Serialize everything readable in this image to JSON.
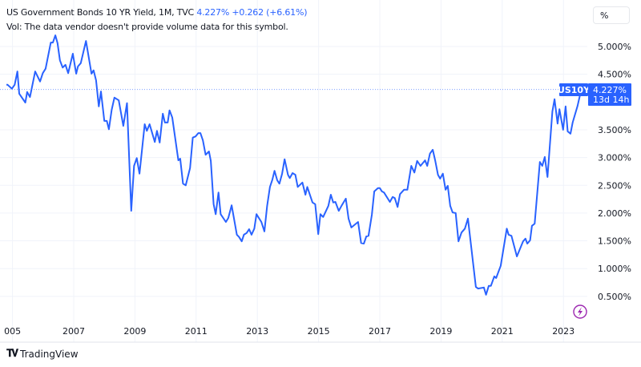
{
  "header": {
    "title": "US Government Bonds 10 YR Yield, 1M, TVC",
    "last": "4.227%",
    "change": "+0.262 (+6.61%)",
    "vol_note": "Vol: The data vendor doesn't provide volume data for this symbol."
  },
  "scale_button": "%",
  "price_label": {
    "symbol": "US10Y",
    "value": "4.227%",
    "countdown": "13d 14h"
  },
  "branding": "TradingView",
  "icons": {
    "alert": "lightning-icon",
    "logo": "tradingview-logo-icon"
  },
  "colors": {
    "line": "#2962ff",
    "label_bg": "#2962ff",
    "alert": "#9c27b0"
  },
  "chart_data": {
    "type": "line",
    "title": "US Government Bonds 10 YR Yield, 1M, TVC",
    "xlabel": "",
    "ylabel": "",
    "xlim": [
      2004.8,
      2023.85
    ],
    "ylim": [
      -0.05,
      5.85
    ],
    "grid": true,
    "x_ticks": [
      "005",
      "2007",
      "2009",
      "2011",
      "2013",
      "2015",
      "2017",
      "2019",
      "2021",
      "2023"
    ],
    "x_tick_values": [
      2005,
      2007,
      2009,
      2011,
      2013,
      2015,
      2017,
      2019,
      2021,
      2023
    ],
    "y_ticks": [
      "5.000%",
      "4.500%",
      "3.500%",
      "3.000%",
      "2.500%",
      "2.000%",
      "1.500%",
      "1.000%",
      "0.500%"
    ],
    "y_tick_values": [
      5.0,
      4.5,
      3.5,
      3.0,
      2.5,
      2.0,
      1.5,
      1.0,
      0.5
    ],
    "last_value": 4.227,
    "series": [
      {
        "points": [
          [
            2004.8,
            4.31
          ],
          [
            2004.84,
            4.31
          ],
          [
            2004.98,
            4.24
          ],
          [
            2005.07,
            4.31
          ],
          [
            2005.16,
            4.55
          ],
          [
            2005.22,
            4.15
          ],
          [
            2005.42,
            3.99
          ],
          [
            2005.48,
            4.18
          ],
          [
            2005.57,
            4.09
          ],
          [
            2005.74,
            4.55
          ],
          [
            2005.9,
            4.37
          ],
          [
            2005.99,
            4.52
          ],
          [
            2006.08,
            4.6
          ],
          [
            2006.25,
            5.07
          ],
          [
            2006.32,
            5.07
          ],
          [
            2006.4,
            5.2
          ],
          [
            2006.47,
            5.06
          ],
          [
            2006.55,
            4.75
          ],
          [
            2006.64,
            4.62
          ],
          [
            2006.73,
            4.67
          ],
          [
            2006.82,
            4.52
          ],
          [
            2006.97,
            4.87
          ],
          [
            2007.08,
            4.51
          ],
          [
            2007.14,
            4.64
          ],
          [
            2007.23,
            4.7
          ],
          [
            2007.4,
            5.1
          ],
          [
            2007.58,
            4.51
          ],
          [
            2007.65,
            4.57
          ],
          [
            2007.73,
            4.39
          ],
          [
            2007.82,
            3.92
          ],
          [
            2007.89,
            4.19
          ],
          [
            2008.0,
            3.66
          ],
          [
            2008.08,
            3.66
          ],
          [
            2008.15,
            3.51
          ],
          [
            2008.24,
            3.86
          ],
          [
            2008.33,
            4.08
          ],
          [
            2008.47,
            4.03
          ],
          [
            2008.62,
            3.57
          ],
          [
            2008.74,
            3.98
          ],
          [
            2008.88,
            2.04
          ],
          [
            2008.97,
            2.85
          ],
          [
            2009.06,
            2.99
          ],
          [
            2009.15,
            2.71
          ],
          [
            2009.32,
            3.6
          ],
          [
            2009.39,
            3.48
          ],
          [
            2009.48,
            3.6
          ],
          [
            2009.65,
            3.28
          ],
          [
            2009.72,
            3.48
          ],
          [
            2009.81,
            3.27
          ],
          [
            2009.91,
            3.79
          ],
          [
            2009.98,
            3.63
          ],
          [
            2010.07,
            3.63
          ],
          [
            2010.13,
            3.85
          ],
          [
            2010.22,
            3.72
          ],
          [
            2010.42,
            2.95
          ],
          [
            2010.48,
            2.98
          ],
          [
            2010.57,
            2.53
          ],
          [
            2010.66,
            2.5
          ],
          [
            2010.8,
            2.81
          ],
          [
            2010.89,
            3.36
          ],
          [
            2010.98,
            3.38
          ],
          [
            2011.07,
            3.44
          ],
          [
            2011.14,
            3.44
          ],
          [
            2011.22,
            3.31
          ],
          [
            2011.31,
            3.05
          ],
          [
            2011.42,
            3.11
          ],
          [
            2011.48,
            2.94
          ],
          [
            2011.57,
            2.16
          ],
          [
            2011.64,
            1.98
          ],
          [
            2011.73,
            2.37
          ],
          [
            2011.8,
            1.98
          ],
          [
            2011.97,
            1.84
          ],
          [
            2012.05,
            1.91
          ],
          [
            2012.16,
            2.14
          ],
          [
            2012.33,
            1.61
          ],
          [
            2012.4,
            1.57
          ],
          [
            2012.49,
            1.49
          ],
          [
            2012.56,
            1.61
          ],
          [
            2012.65,
            1.64
          ],
          [
            2012.73,
            1.71
          ],
          [
            2012.81,
            1.61
          ],
          [
            2012.9,
            1.72
          ],
          [
            2012.97,
            1.98
          ],
          [
            2013.13,
            1.84
          ],
          [
            2013.23,
            1.67
          ],
          [
            2013.32,
            2.13
          ],
          [
            2013.41,
            2.47
          ],
          [
            2013.49,
            2.6
          ],
          [
            2013.56,
            2.76
          ],
          [
            2013.65,
            2.59
          ],
          [
            2013.72,
            2.53
          ],
          [
            2013.81,
            2.71
          ],
          [
            2013.89,
            2.97
          ],
          [
            2014.0,
            2.69
          ],
          [
            2014.06,
            2.63
          ],
          [
            2014.15,
            2.72
          ],
          [
            2014.24,
            2.69
          ],
          [
            2014.32,
            2.47
          ],
          [
            2014.47,
            2.55
          ],
          [
            2014.57,
            2.33
          ],
          [
            2014.63,
            2.47
          ],
          [
            2014.8,
            2.19
          ],
          [
            2014.89,
            2.16
          ],
          [
            2014.99,
            1.62
          ],
          [
            2015.06,
            1.98
          ],
          [
            2015.15,
            1.93
          ],
          [
            2015.32,
            2.13
          ],
          [
            2015.4,
            2.33
          ],
          [
            2015.48,
            2.19
          ],
          [
            2015.55,
            2.2
          ],
          [
            2015.66,
            2.04
          ],
          [
            2015.76,
            2.14
          ],
          [
            2015.89,
            2.26
          ],
          [
            2015.98,
            1.9
          ],
          [
            2016.07,
            1.74
          ],
          [
            2016.29,
            1.84
          ],
          [
            2016.39,
            1.46
          ],
          [
            2016.48,
            1.45
          ],
          [
            2016.56,
            1.58
          ],
          [
            2016.63,
            1.59
          ],
          [
            2016.74,
            1.97
          ],
          [
            2016.82,
            2.39
          ],
          [
            2016.94,
            2.45
          ],
          [
            2017.0,
            2.45
          ],
          [
            2017.07,
            2.39
          ],
          [
            2017.14,
            2.37
          ],
          [
            2017.33,
            2.2
          ],
          [
            2017.42,
            2.29
          ],
          [
            2017.49,
            2.27
          ],
          [
            2017.58,
            2.11
          ],
          [
            2017.66,
            2.34
          ],
          [
            2017.79,
            2.42
          ],
          [
            2017.9,
            2.42
          ],
          [
            2018.03,
            2.85
          ],
          [
            2018.13,
            2.73
          ],
          [
            2018.22,
            2.94
          ],
          [
            2018.33,
            2.85
          ],
          [
            2018.48,
            2.95
          ],
          [
            2018.55,
            2.85
          ],
          [
            2018.64,
            3.07
          ],
          [
            2018.73,
            3.14
          ],
          [
            2018.81,
            2.95
          ],
          [
            2018.9,
            2.69
          ],
          [
            2018.97,
            2.62
          ],
          [
            2019.06,
            2.71
          ],
          [
            2019.15,
            2.42
          ],
          [
            2019.22,
            2.49
          ],
          [
            2019.3,
            2.13
          ],
          [
            2019.38,
            2.01
          ],
          [
            2019.48,
            2.0
          ],
          [
            2019.57,
            1.49
          ],
          [
            2019.67,
            1.65
          ],
          [
            2019.78,
            1.72
          ],
          [
            2019.88,
            1.9
          ],
          [
            2020.14,
            0.67
          ],
          [
            2020.21,
            0.64
          ],
          [
            2020.4,
            0.66
          ],
          [
            2020.47,
            0.53
          ],
          [
            2020.56,
            0.69
          ],
          [
            2020.63,
            0.69
          ],
          [
            2020.74,
            0.86
          ],
          [
            2020.8,
            0.83
          ],
          [
            2020.95,
            1.05
          ],
          [
            2021.15,
            1.72
          ],
          [
            2021.21,
            1.61
          ],
          [
            2021.3,
            1.59
          ],
          [
            2021.48,
            1.22
          ],
          [
            2021.68,
            1.49
          ],
          [
            2021.76,
            1.54
          ],
          [
            2021.82,
            1.45
          ],
          [
            2021.91,
            1.51
          ],
          [
            2021.97,
            1.77
          ],
          [
            2022.06,
            1.81
          ],
          [
            2022.23,
            2.92
          ],
          [
            2022.31,
            2.85
          ],
          [
            2022.39,
            3.01
          ],
          [
            2022.48,
            2.65
          ],
          [
            2022.64,
            3.83
          ],
          [
            2022.71,
            4.05
          ],
          [
            2022.81,
            3.61
          ],
          [
            2022.87,
            3.87
          ],
          [
            2022.99,
            3.5
          ],
          [
            2023.07,
            3.92
          ],
          [
            2023.14,
            3.47
          ],
          [
            2023.23,
            3.43
          ],
          [
            2023.3,
            3.63
          ],
          [
            2023.46,
            3.93
          ],
          [
            2023.54,
            4.12
          ],
          [
            2023.59,
            4.227
          ]
        ]
      }
    ]
  }
}
